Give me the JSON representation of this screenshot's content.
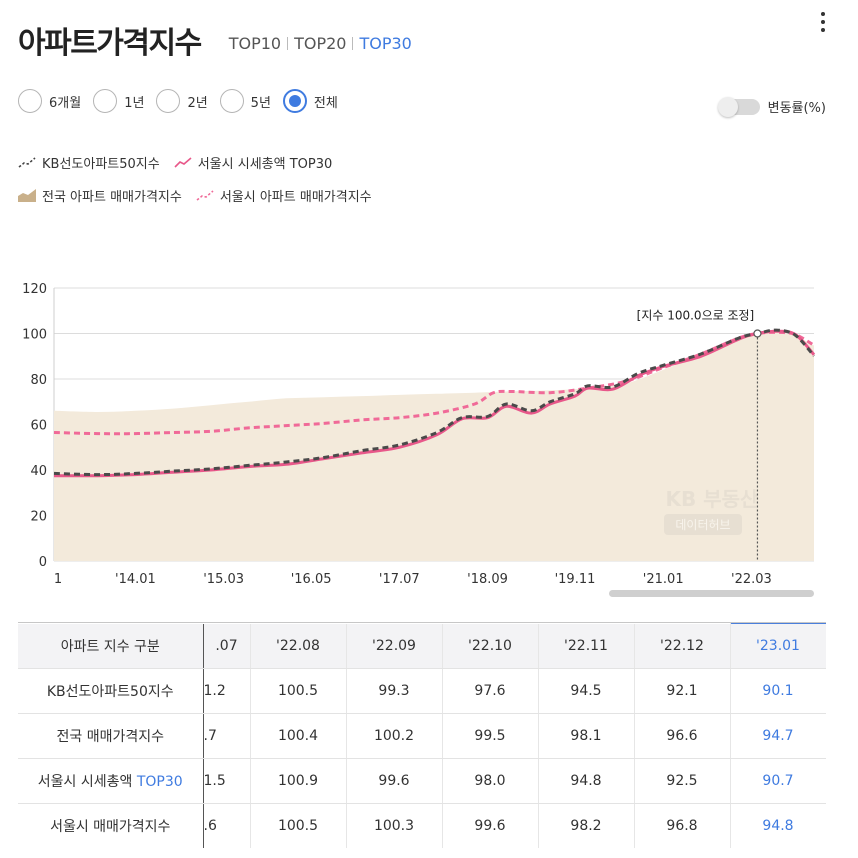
{
  "header": {
    "title": "아파트가격지수",
    "tabs": [
      "TOP10",
      "TOP20",
      "TOP30"
    ],
    "active_tab": "TOP30"
  },
  "periods": {
    "options": [
      "6개월",
      "1년",
      "2년",
      "5년",
      "전체"
    ],
    "selected": "전체"
  },
  "toggle": {
    "label": "변동률(%)",
    "on": false
  },
  "legend": {
    "items": [
      {
        "label": "KB선도아파트50지수",
        "style": "dashed",
        "color": "#444444"
      },
      {
        "label": "서울시 시세총액 TOP30",
        "style": "line",
        "color": "#e8588a"
      },
      {
        "label": "전국 아파트 매매가격지수",
        "style": "area",
        "color": "#c9b08a"
      },
      {
        "label": "서울시 아파트 매매가격지수",
        "style": "dashed",
        "color": "#f06a98"
      }
    ]
  },
  "chart_data": {
    "type": "line",
    "annotation": "[지수 100.0으로 조정]",
    "annotation_x": 2022.25,
    "watermark_brand": "KB 부동산",
    "watermark_sub": "데이터허브",
    "x_ticks": [
      "1",
      "'14.01",
      "'15.03",
      "'16.05",
      "'17.07",
      "'18.09",
      "'19.11",
      "'21.01",
      "'22.03"
    ],
    "x_tick_values": [
      2012.92,
      2014.0,
      2015.17,
      2016.33,
      2017.5,
      2018.67,
      2019.83,
      2021.0,
      2022.17
    ],
    "xlim": [
      2012.92,
      2023.0
    ],
    "ylim": [
      0,
      120
    ],
    "y_ticks": [
      0,
      20,
      40,
      60,
      80,
      100,
      120
    ],
    "grid": true,
    "series": [
      {
        "name": "전국 아파트 매매가격지수",
        "type": "area",
        "x": [
          2012.92,
          2013.5,
          2014.0,
          2014.5,
          2015.0,
          2015.5,
          2016.0,
          2016.5,
          2017.0,
          2017.5,
          2018.0,
          2018.5,
          2018.92,
          2019.5,
          2020.0,
          2020.5,
          2021.0,
          2021.5,
          2022.0,
          2022.25,
          2022.5,
          2022.75,
          2023.0
        ],
        "values": [
          66,
          65.5,
          66,
          67,
          68.5,
          70,
          71.5,
          72,
          72.5,
          73,
          73.5,
          74,
          74.5,
          75,
          76,
          78,
          84,
          91,
          98,
          100,
          100.5,
          99,
          94.7
        ]
      },
      {
        "name": "서울시 아파트 매매가격지수",
        "type": "dashed",
        "x": [
          2012.92,
          2013.5,
          2014.0,
          2014.5,
          2015.0,
          2015.5,
          2016.0,
          2016.5,
          2017.0,
          2017.5,
          2018.0,
          2018.5,
          2018.75,
          2019.0,
          2019.5,
          2020.0,
          2020.5,
          2021.0,
          2021.5,
          2022.0,
          2022.25,
          2022.5,
          2022.75,
          2023.0
        ],
        "values": [
          56.5,
          56,
          56,
          56.5,
          57,
          58.5,
          59.5,
          60.5,
          62,
          63,
          65,
          69,
          74,
          74.5,
          74,
          76,
          79,
          85,
          91,
          98,
          100,
          100.5,
          99.6,
          94.8
        ]
      },
      {
        "name": "KB선도아파트50지수",
        "type": "dashed",
        "x": [
          2012.92,
          2013.5,
          2014.0,
          2014.5,
          2015.0,
          2015.5,
          2016.0,
          2016.5,
          2017.0,
          2017.5,
          2018.0,
          2018.33,
          2018.67,
          2018.92,
          2019.25,
          2019.5,
          2019.83,
          2020.0,
          2020.33,
          2020.67,
          2021.0,
          2021.5,
          2022.0,
          2022.25,
          2022.5,
          2022.75,
          2023.0
        ],
        "values": [
          38.5,
          38,
          38.5,
          39.5,
          40.5,
          42,
          43.5,
          45.5,
          48.5,
          51,
          56.5,
          63,
          63.5,
          69,
          66,
          70,
          73.5,
          77,
          76.5,
          82.5,
          86,
          91,
          98,
          100,
          101.5,
          99.3,
          90.1
        ]
      },
      {
        "name": "서울시 시세총액 TOP30",
        "type": "line",
        "x": [
          2012.92,
          2013.5,
          2014.0,
          2014.5,
          2015.0,
          2015.5,
          2016.0,
          2016.5,
          2017.0,
          2017.5,
          2018.0,
          2018.33,
          2018.67,
          2018.92,
          2019.25,
          2019.5,
          2019.83,
          2020.0,
          2020.33,
          2020.67,
          2021.0,
          2021.5,
          2022.0,
          2022.25,
          2022.5,
          2022.75,
          2023.0
        ],
        "values": [
          37.5,
          37.5,
          38,
          39,
          40,
          41.5,
          42.5,
          45,
          47.5,
          50,
          55.5,
          62.5,
          63,
          68,
          65,
          69,
          72.5,
          76,
          75.5,
          81.5,
          85.5,
          90,
          97.5,
          100,
          101,
          99.6,
          90.7
        ]
      }
    ]
  },
  "table": {
    "row_header_label": "아파트 지수 구분",
    "columns": [
      ".07",
      "'22.08",
      "'22.09",
      "'22.10",
      "'22.11",
      "'22.12",
      "'23.01"
    ],
    "rows": [
      {
        "label": "KB선도아파트50지수",
        "label_accent": "",
        "values": [
          "1.2",
          "100.5",
          "99.3",
          "97.6",
          "94.5",
          "92.1",
          "90.1"
        ]
      },
      {
        "label": "전국 매매가격지수",
        "label_accent": "",
        "values": [
          ".7",
          "100.4",
          "100.2",
          "99.5",
          "98.1",
          "96.6",
          "94.7"
        ]
      },
      {
        "label": "서울시 시세총액 ",
        "label_accent": "TOP30",
        "values": [
          "1.5",
          "100.9",
          "99.6",
          "98.0",
          "94.8",
          "92.5",
          "90.7"
        ]
      },
      {
        "label": "서울시 매매가격지수",
        "label_accent": "",
        "values": [
          ".6",
          "100.5",
          "100.3",
          "99.6",
          "98.2",
          "96.8",
          "94.8"
        ]
      }
    ]
  }
}
